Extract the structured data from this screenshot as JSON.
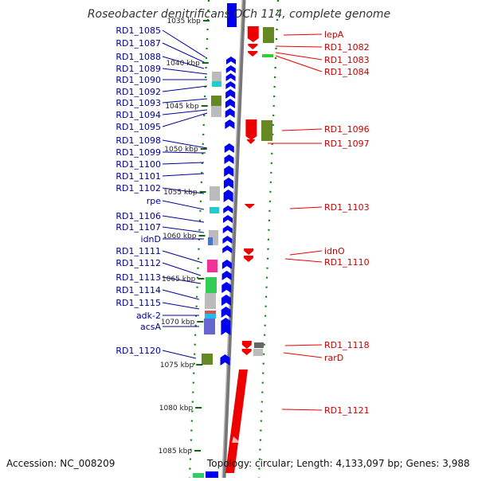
{
  "title": "Roseobacter denitrificans OCh 114, complete genome",
  "footer": {
    "accession": "Accession: NC_008209",
    "summary": "Topology: circular; Length: 4,133,097 bp; Genes: 3,988"
  },
  "colors": {
    "left_label": "#000099",
    "right_label": "#cc0000",
    "forward_gene": "#0000ee",
    "reverse_gene": "#ee0000",
    "backbone": "#888888",
    "dots": "#008800",
    "tick_text": "#222222",
    "leader": "#000099"
  },
  "ticks": [
    {
      "label": "1035 kbp"
    },
    {
      "label": "1040 kbp"
    },
    {
      "label": "1045 kbp"
    },
    {
      "label": "1050 kbp"
    },
    {
      "label": "1055 kbp"
    },
    {
      "label": "1060 kbp"
    },
    {
      "label": "1065 kbp"
    },
    {
      "label": "1070 kbp"
    },
    {
      "label": "1075 kbp"
    },
    {
      "label": "1080 kbp"
    },
    {
      "label": "1085 kbp"
    }
  ],
  "left_labels": [
    "RD1_1085",
    "RD1_1087",
    "RD1_1088",
    "RD1_1089",
    "RD1_1090",
    "RD1_1092",
    "RD1_1093",
    "RD1_1094",
    "RD1_1095",
    "RD1_1098",
    "RD1_1099",
    "RD1_1100",
    "RD1_1101",
    "RD1_1102",
    "rpe",
    "RD1_1106",
    "RD1_1107",
    "idnD",
    "RD1_1111",
    "RD1_1112",
    "RD1_1113",
    "RD1_1114",
    "RD1_1115",
    "adk-2",
    "acsA",
    "RD1_1120"
  ],
  "right_labels": [
    "lepA",
    "RD1_1082",
    "RD1_1083",
    "RD1_1084",
    "RD1_1096",
    "RD1_1097",
    "RD1_1103",
    "idnO",
    "RD1_1110",
    "RD1_1118",
    "rarD",
    "RD1_1121"
  ]
}
